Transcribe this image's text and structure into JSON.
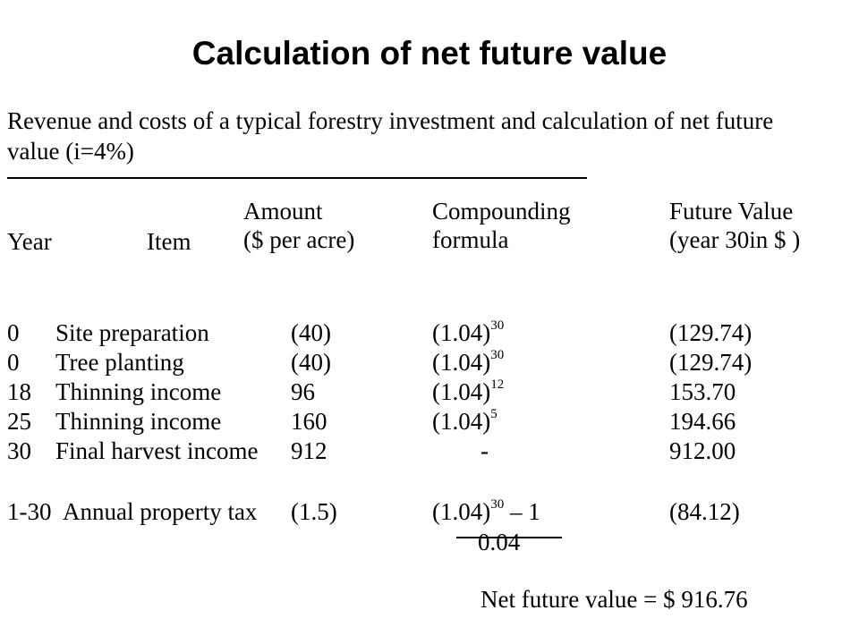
{
  "title": "Calculation of net future value",
  "caption": {
    "line1": "Revenue and costs of a typical forestry investment and calculation of net future",
    "line2": "value (i=4%)"
  },
  "headers": {
    "year": "Year",
    "item": "Item",
    "amount_line1": "Amount",
    "amount_line2": "($ per acre)",
    "formula_line1": "Compounding",
    "formula_line2": "formula",
    "fv_line1": "Future Value",
    "fv_line2": "(year 30in $ )"
  },
  "rows": [
    {
      "year": "0",
      "item": "Site preparation",
      "amount": "(40)",
      "formula_base": "(1.04)",
      "formula_exp": "30",
      "fv": "(129.74)"
    },
    {
      "year": "0",
      "item": "Tree planting",
      "amount": "(40)",
      "formula_base": "(1.04)",
      "formula_exp": "30",
      "fv": "(129.74)"
    },
    {
      "year": "18",
      "item": "Thinning income",
      "amount": "96",
      "formula_base": "(1.04)",
      "formula_exp": "12",
      "fv": "153.70"
    },
    {
      "year": "25",
      "item": "Thinning income",
      "amount": "160",
      "formula_base": "(1.04)",
      "formula_exp": "5",
      "fv": "194.66"
    },
    {
      "year": "30",
      "item": "Final harvest income",
      "amount": "912",
      "formula_base": "-",
      "formula_exp": "",
      "fv": "912.00"
    }
  ],
  "annual": {
    "year": "1-30",
    "item": "Annual property tax",
    "amount": "(1.5)",
    "formula_base": "(1.04)",
    "formula_exp": "30",
    "formula_rest": " – 1",
    "denominator": "0.04",
    "fv": "(84.12)"
  },
  "net_future_value": "Net future value = $ 916.76"
}
